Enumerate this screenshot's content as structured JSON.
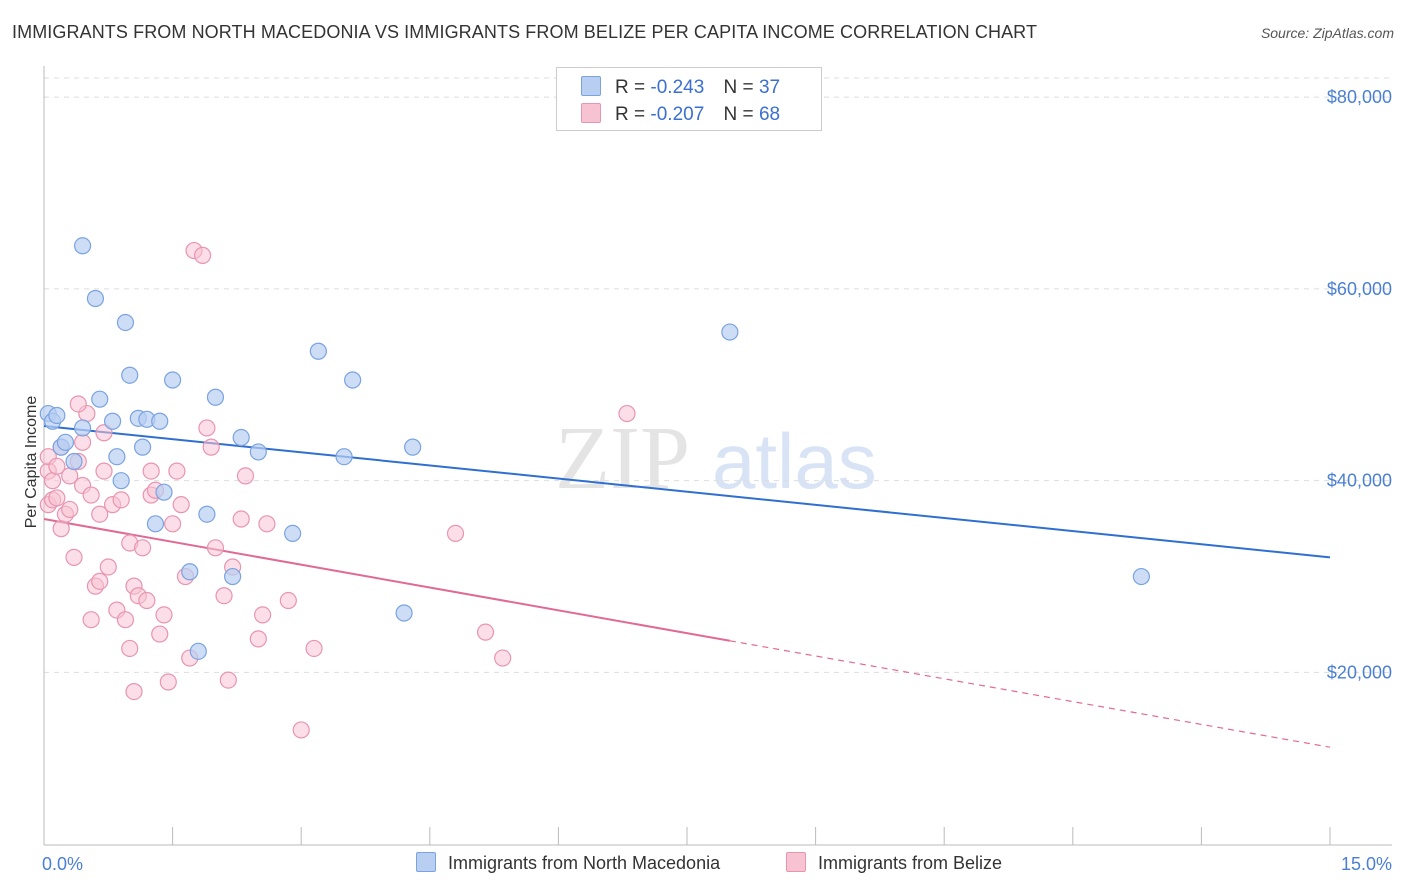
{
  "title": "IMMIGRANTS FROM NORTH MACEDONIA VS IMMIGRANTS FROM BELIZE PER CAPITA INCOME CORRELATION CHART",
  "source": "Source: ZipAtlas.com",
  "watermark": {
    "zip": "ZIP",
    "atlas": "atlas"
  },
  "colors": {
    "blue_fill": "#b8cff2",
    "blue_stroke": "#7aa3e0",
    "blue_line": "#2f6fd0",
    "pink_fill": "#f7c3d3",
    "pink_stroke": "#e895b0",
    "pink_line": "#e06a93",
    "tick_text": "#4a7fd4",
    "grid": "#dddddd"
  },
  "legend": {
    "rows": [
      {
        "r_label": "R =",
        "r_value": "-0.243",
        "n_label": "N =",
        "n_value": "37"
      },
      {
        "r_label": "R =",
        "r_value": "-0.207",
        "n_label": "N =",
        "n_value": "68"
      }
    ]
  },
  "chart_data": {
    "type": "scatter",
    "title": "IMMIGRANTS FROM NORTH MACEDONIA VS IMMIGRANTS FROM BELIZE PER CAPITA INCOME CORRELATION CHART",
    "xlabel": "",
    "ylabel": "Per Capita Income",
    "xlim": [
      0,
      15
    ],
    "ylim": [
      2000,
      82000
    ],
    "x_tick_labels": [
      "0.0%",
      "15.0%"
    ],
    "y_ticks": [
      20000,
      40000,
      60000,
      80000
    ],
    "y_tick_labels": [
      "$20,000",
      "$40,000",
      "$60,000",
      "$80,000"
    ],
    "grid": true,
    "series": [
      {
        "name": "Immigrants from North Macedonia",
        "color": "#b8cff2",
        "points": [
          [
            0.05,
            47000
          ],
          [
            0.1,
            46200
          ],
          [
            0.15,
            46800
          ],
          [
            0.2,
            43500
          ],
          [
            0.25,
            44000
          ],
          [
            0.35,
            42000
          ],
          [
            0.45,
            45500
          ],
          [
            0.45,
            64500
          ],
          [
            0.6,
            59000
          ],
          [
            0.65,
            48500
          ],
          [
            0.8,
            46200
          ],
          [
            0.85,
            42500
          ],
          [
            0.9,
            40000
          ],
          [
            0.95,
            56500
          ],
          [
            1.0,
            51000
          ],
          [
            1.1,
            46500
          ],
          [
            1.15,
            43500
          ],
          [
            1.2,
            46400
          ],
          [
            1.3,
            35500
          ],
          [
            1.35,
            46200
          ],
          [
            1.4,
            38800
          ],
          [
            1.5,
            50500
          ],
          [
            1.7,
            30500
          ],
          [
            1.8,
            22200
          ],
          [
            1.9,
            36500
          ],
          [
            2.0,
            48700
          ],
          [
            2.2,
            30000
          ],
          [
            2.3,
            44500
          ],
          [
            2.5,
            43000
          ],
          [
            2.9,
            34500
          ],
          [
            3.2,
            53500
          ],
          [
            3.5,
            42500
          ],
          [
            3.6,
            50500
          ],
          [
            4.2,
            26200
          ],
          [
            4.3,
            43500
          ],
          [
            8.0,
            55500
          ],
          [
            12.8,
            30000
          ]
        ],
        "trend": {
          "x": [
            0,
            15
          ],
          "y": [
            45700,
            32000
          ]
        }
      },
      {
        "name": "Immigrants from Belize",
        "color": "#f7c3d3",
        "points": [
          [
            0.05,
            41000
          ],
          [
            0.05,
            37500
          ],
          [
            0.05,
            42500
          ],
          [
            0.1,
            40000
          ],
          [
            0.1,
            38000
          ],
          [
            0.15,
            41500
          ],
          [
            0.2,
            35000
          ],
          [
            0.2,
            43500
          ],
          [
            0.25,
            36500
          ],
          [
            0.3,
            40500
          ],
          [
            0.3,
            37000
          ],
          [
            0.35,
            32000
          ],
          [
            0.4,
            42000
          ],
          [
            0.45,
            39500
          ],
          [
            0.45,
            44000
          ],
          [
            0.5,
            47000
          ],
          [
            0.55,
            25500
          ],
          [
            0.55,
            38500
          ],
          [
            0.6,
            29000
          ],
          [
            0.65,
            29500
          ],
          [
            0.65,
            36500
          ],
          [
            0.7,
            41000
          ],
          [
            0.75,
            31000
          ],
          [
            0.8,
            37500
          ],
          [
            0.85,
            26500
          ],
          [
            0.9,
            38000
          ],
          [
            0.95,
            25500
          ],
          [
            1.0,
            33500
          ],
          [
            1.0,
            22500
          ],
          [
            1.05,
            29000
          ],
          [
            1.05,
            18000
          ],
          [
            1.1,
            28000
          ],
          [
            1.15,
            33000
          ],
          [
            1.2,
            27500
          ],
          [
            1.25,
            38500
          ],
          [
            1.3,
            39000
          ],
          [
            1.35,
            24000
          ],
          [
            1.4,
            26000
          ],
          [
            1.45,
            19000
          ],
          [
            1.5,
            35500
          ],
          [
            1.55,
            41000
          ],
          [
            1.6,
            37500
          ],
          [
            1.65,
            30000
          ],
          [
            1.7,
            21500
          ],
          [
            1.75,
            64000
          ],
          [
            1.85,
            63500
          ],
          [
            1.9,
            45500
          ],
          [
            1.95,
            43500
          ],
          [
            2.0,
            33000
          ],
          [
            2.1,
            28000
          ],
          [
            2.15,
            19200
          ],
          [
            2.2,
            31000
          ],
          [
            2.3,
            36000
          ],
          [
            2.35,
            40500
          ],
          [
            2.5,
            23500
          ],
          [
            2.55,
            26000
          ],
          [
            2.6,
            35500
          ],
          [
            2.85,
            27500
          ],
          [
            3.0,
            14000
          ],
          [
            3.15,
            22500
          ],
          [
            4.8,
            34500
          ],
          [
            5.15,
            24200
          ],
          [
            5.35,
            21500
          ],
          [
            6.8,
            47000
          ],
          [
            0.4,
            48000
          ],
          [
            0.7,
            45000
          ],
          [
            1.25,
            41000
          ],
          [
            0.15,
            38200
          ]
        ],
        "trend": {
          "x": [
            0,
            8.0
          ],
          "y": [
            36000,
            23300
          ]
        },
        "trend_dashed": {
          "x": [
            8.0,
            15
          ],
          "y": [
            23300,
            12200
          ]
        }
      }
    ]
  }
}
